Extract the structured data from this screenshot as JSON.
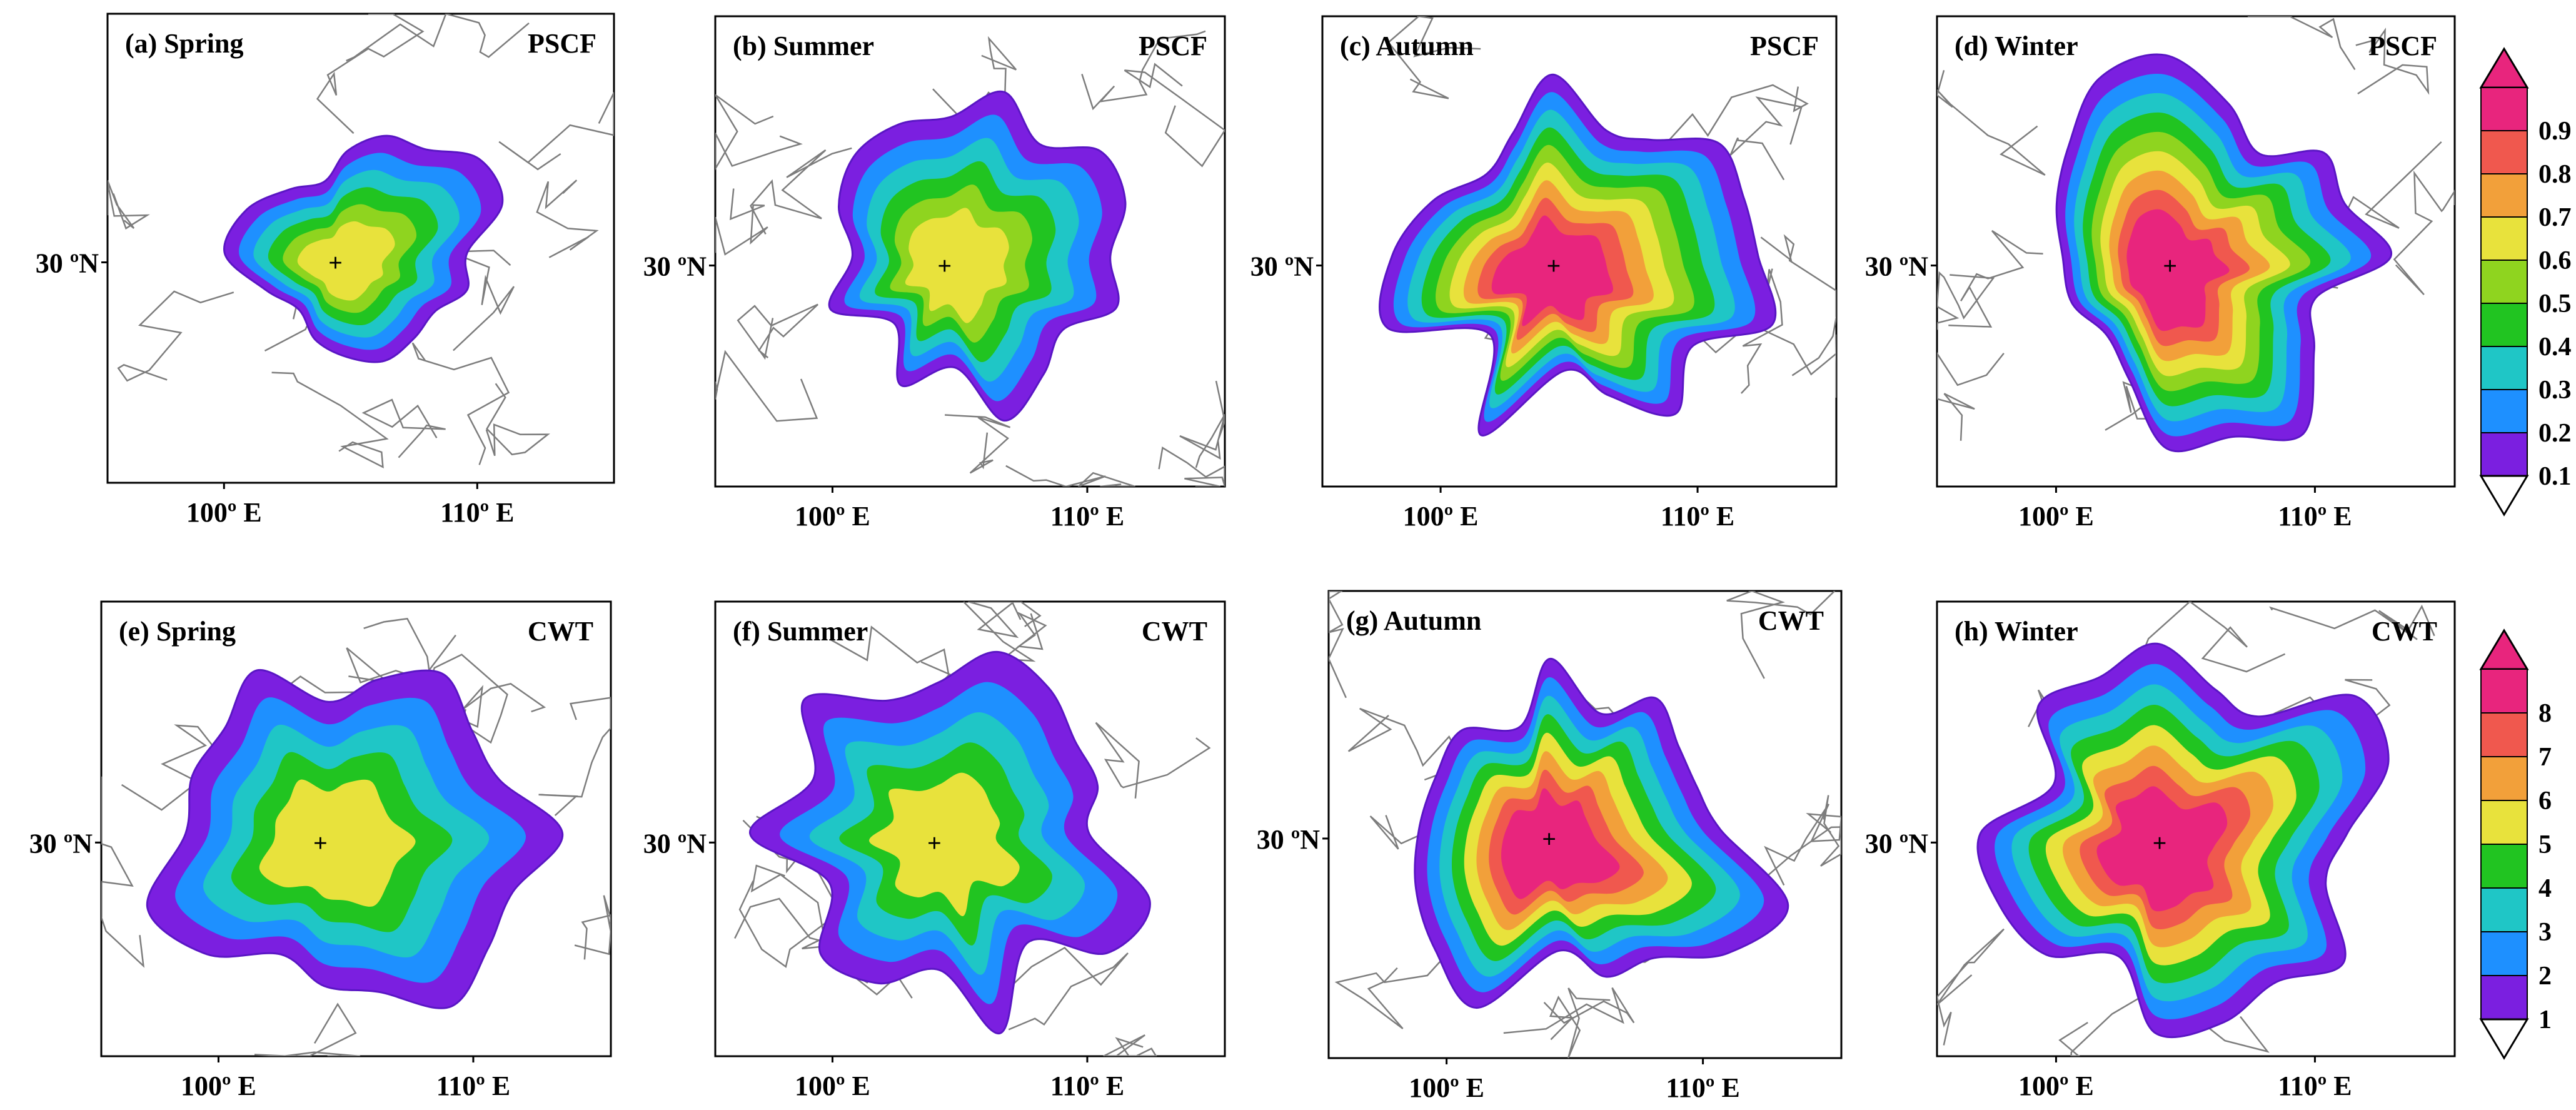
{
  "figure": {
    "rows": [
      {
        "row_id": "pscf",
        "variable": "PSCF",
        "panels": [
          {
            "id": "a",
            "label": "(a) Spring",
            "variable": "PSCF"
          },
          {
            "id": "b",
            "label": "(b) Summer",
            "variable": "PSCF"
          },
          {
            "id": "c",
            "label": "(c) Autumn",
            "variable": "PSCF"
          },
          {
            "id": "d",
            "label": "(d) Winter",
            "variable": "PSCF"
          }
        ],
        "colorbar": {
          "labels": [
            "0.1",
            "0.2",
            "0.3",
            "0.4",
            "0.5",
            "0.6",
            "0.7",
            "0.8",
            "0.9"
          ],
          "colors": [
            "#7b1fe0",
            "#1e90ff",
            "#1fc6c6",
            "#21c421",
            "#8fd41f",
            "#e8e23c",
            "#f2a03a",
            "#f0584e",
            "#e8257d"
          ]
        }
      },
      {
        "row_id": "cwt",
        "variable": "CWT",
        "panels": [
          {
            "id": "e",
            "label": "(e) Spring",
            "variable": "CWT"
          },
          {
            "id": "f",
            "label": "(f) Summer",
            "variable": "CWT"
          },
          {
            "id": "g",
            "label": "(g) Autumn",
            "variable": "CWT"
          },
          {
            "id": "h",
            "label": "(h) Winter",
            "variable": "CWT"
          }
        ],
        "colorbar": {
          "labels": [
            "1",
            "2",
            "3",
            "4",
            "5",
            "6",
            "7",
            "8"
          ],
          "colors": [
            "#7b1fe0",
            "#1e90ff",
            "#1fc6c6",
            "#21c421",
            "#e8e23c",
            "#f2a03a",
            "#f0584e",
            "#e8257d"
          ]
        }
      }
    ],
    "axes": {
      "lat_tick": "30 ºN",
      "lon_ticks": [
        "100º E",
        "110º E"
      ]
    },
    "map_data": {
      "receptor_marker": "+",
      "extent_level_by_panel": {
        "a": 3,
        "b": 4,
        "c": 5,
        "d": 5,
        "e": 5,
        "f": 5,
        "g": 5,
        "h": 5
      },
      "peak_value_by_panel": {
        "a": 0.6,
        "b": 0.6,
        "c": 0.9,
        "d": 0.9,
        "e": 5,
        "f": 5,
        "g": 8,
        "h": 8
      }
    }
  }
}
